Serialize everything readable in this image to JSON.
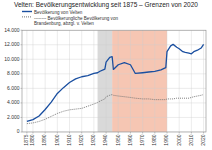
{
  "chart_data": {
    "type": "line",
    "title": "Velten: Bevölkerungsentwicklung seit 1875 – Grenzen von 2020",
    "x": [
      1875,
      1880,
      1885,
      1890,
      1895,
      1900,
      1905,
      1910,
      1915,
      1920,
      1925,
      1930,
      1933,
      1935,
      1939,
      1940,
      1943,
      1945,
      1946,
      1950,
      1955,
      1960,
      1964,
      1970,
      1975,
      1980,
      1985,
      1989,
      1990,
      1993,
      1995,
      1998,
      2000,
      2003,
      2005,
      2008,
      2010,
      2012,
      2015,
      2018,
      2020
    ],
    "series": [
      {
        "name": "Bevölkerung von Velten",
        "color": "#1a4fa0",
        "line_style": "solid",
        "values": [
          1450,
          1700,
          2200,
          3100,
          4100,
          5300,
          6100,
          6800,
          7300,
          7600,
          7750,
          8050,
          8150,
          8350,
          8650,
          9600,
          10250,
          10350,
          8600,
          9250,
          9550,
          9250,
          8050,
          8150,
          8250,
          8350,
          8550,
          8850,
          11050,
          11850,
          12050,
          11650,
          11450,
          11050,
          10950,
          10850,
          10750,
          11050,
          11250,
          11550,
          12050
        ]
      },
      {
        "name": "--------  Bevölkerungliche Bevölkerung von\nBrandenburg, abzgl. v. Velten",
        "color": "#707070",
        "line_style": "dotted",
        "values": [
          1150,
          1250,
          1450,
          1750,
          2150,
          2550,
          2850,
          3050,
          3150,
          3250,
          3550,
          3850,
          4050,
          4250,
          4550,
          4850,
          5050,
          5150,
          5050,
          4950,
          4850,
          4750,
          4650,
          4550,
          4550,
          4450,
          4450,
          4450,
          4550,
          4550,
          4550,
          4650,
          4650,
          4650,
          4650,
          4650,
          4750,
          4850,
          4950,
          5050,
          5150
        ]
      }
    ],
    "shaded_ranges": [
      {
        "start": 1933,
        "end": 1945,
        "color": "#c0c0c0"
      },
      {
        "start": 1945,
        "end": 1990,
        "color": "#f0a080"
      }
    ],
    "xlim": [
      1871,
      2022
    ],
    "ylim": [
      0,
      14000
    ],
    "xticks": [
      1875,
      1880,
      1890,
      1900,
      1910,
      1920,
      1930,
      1940,
      1950,
      1960,
      1970,
      1980,
      1990,
      2000,
      2010,
      2020
    ],
    "yticks": [
      0,
      {
        "value": 2000,
        "label": "2.000"
      },
      {
        "value": 4000,
        "label": "4.000"
      },
      {
        "value": 6000,
        "label": "6.000"
      },
      {
        "value": 8000,
        "label": "8.000"
      },
      {
        "value": 10000,
        "label": "10.000"
      },
      {
        "value": 12000,
        "label": "12.000"
      },
      {
        "value": 14000,
        "label": "14.000"
      }
    ],
    "grid": true,
    "legend": "upper left"
  }
}
